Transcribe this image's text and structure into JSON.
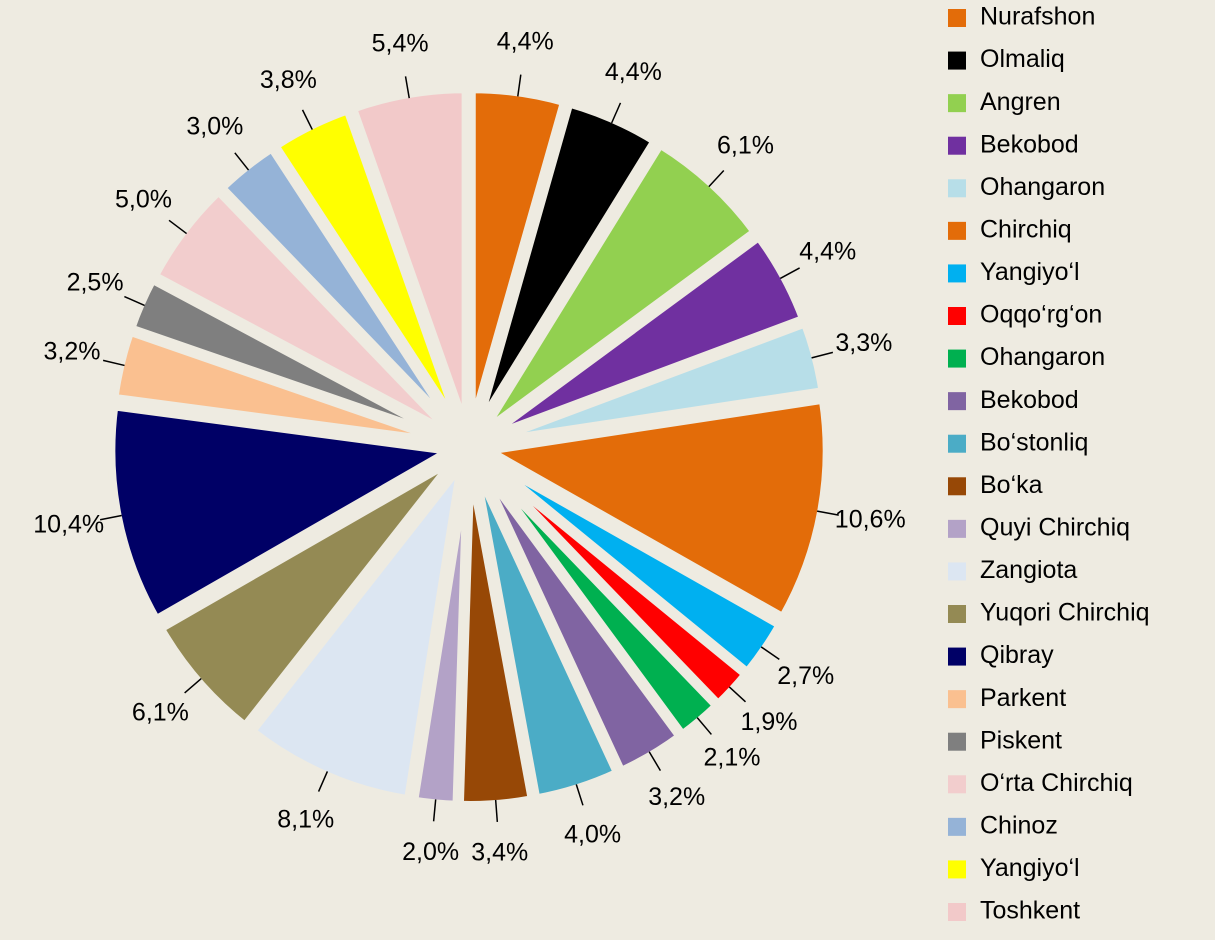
{
  "chart_data": {
    "type": "pie",
    "categories": [
      "Nurafshon",
      "Olmaliq",
      "Angren",
      "Bekobod",
      "Ohangaron",
      "Chirchiq",
      "Yangiyo‘l",
      "Oqqo‘rg‘on",
      "Ohangaron",
      "Bekobod",
      "Bo‘stonliq",
      "Bo‘ka",
      "Quyi Chirchiq",
      "Zangiota",
      "Yuqori Chirchiq",
      "Qibray",
      "Parkent",
      "Piskent",
      "O‘rta Chirchiq",
      "Chinoz",
      "Yangiyo‘l",
      "Toshkent"
    ],
    "values": [
      4.4,
      4.4,
      6.1,
      4.4,
      3.3,
      10.6,
      2.7,
      1.9,
      2.1,
      3.2,
      4.0,
      3.4,
      2.0,
      8.1,
      6.1,
      10.4,
      3.2,
      2.5,
      5.0,
      3.0,
      3.8,
      5.4
    ],
    "value_labels": [
      "4,4%",
      "4,4%",
      "6,1%",
      "4,4%",
      "3,3%",
      "10,6%",
      "2,7%",
      "1,9%",
      "2,1%",
      "3,2%",
      "4,0%",
      "3,4%",
      "2,0%",
      "8,1%",
      "6,1%",
      "10,4%",
      "3,2%",
      "2,5%",
      "5,0%",
      "3,0%",
      "3,8%",
      "5,4%"
    ],
    "colors": [
      "#e36c09",
      "#000000",
      "#92d050",
      "#7030a0",
      "#b7dee8",
      "#e36c09",
      "#00b0f0",
      "#ff0000",
      "#00b050",
      "#8064a2",
      "#4bacc6",
      "#974806",
      "#b3a2c7",
      "#dce6f2",
      "#948a54",
      "#000066",
      "#fac090",
      "#7f7f7f",
      "#f2cdcd",
      "#95b3d7",
      "#ffff00",
      "#f2c9c9"
    ],
    "legend": "right"
  }
}
